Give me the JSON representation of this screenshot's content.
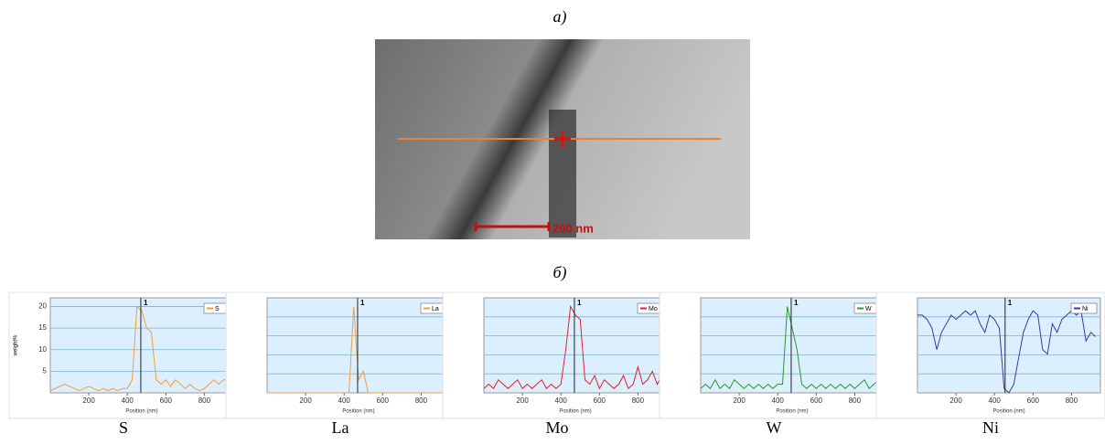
{
  "panel_labels": [
    "а)",
    "б)"
  ],
  "image": {
    "scale_label": "200 nm"
  },
  "chart_data": [
    {
      "type": "line",
      "title": "S",
      "ylabel": "weight%",
      "xlabel": "Position (nm)",
      "x": [
        0,
        25,
        50,
        75,
        100,
        125,
        150,
        175,
        200,
        225,
        250,
        275,
        300,
        325,
        350,
        375,
        400,
        425,
        450,
        475,
        500,
        525,
        550,
        575,
        600,
        625,
        650,
        675,
        700,
        725,
        750,
        775,
        800,
        825,
        850,
        875,
        900,
        925
      ],
      "series": [
        {
          "name": "S",
          "color": "#f0a030",
          "values": [
            0.5,
            1,
            1.5,
            2,
            1.5,
            1,
            0.5,
            1,
            1.5,
            1,
            0.5,
            1,
            0.5,
            1,
            0.5,
            1,
            1,
            3,
            20,
            19,
            15,
            14,
            3,
            2,
            3,
            1.5,
            3,
            2,
            1,
            2,
            1,
            0.5,
            1,
            2,
            3,
            2,
            3,
            3
          ]
        }
      ],
      "xlim": [
        0,
        950
      ],
      "ylim": [
        0,
        22
      ],
      "xticks": [
        200,
        400,
        600,
        800
      ],
      "yticks": [
        5,
        10,
        15,
        20
      ],
      "marker": {
        "x": 470,
        "label": "1"
      }
    },
    {
      "type": "line",
      "title": "La",
      "xlabel": "Position (nm)",
      "x": [
        0,
        25,
        50,
        75,
        100,
        125,
        150,
        175,
        200,
        225,
        250,
        275,
        300,
        325,
        350,
        375,
        400,
        425,
        450,
        475,
        500,
        525,
        550,
        575,
        600,
        625,
        650,
        675,
        700,
        725,
        750,
        775,
        800,
        825,
        850,
        875,
        900,
        925
      ],
      "series": [
        {
          "name": "La",
          "color": "#e8a040",
          "values": [
            0,
            0,
            0,
            0,
            0,
            0,
            0,
            0,
            0,
            0,
            0,
            0,
            0,
            0,
            0,
            0,
            0,
            0,
            20,
            3,
            5,
            0,
            0,
            0,
            0,
            0,
            0,
            0,
            0,
            0,
            0,
            0,
            0,
            0,
            0,
            0,
            0,
            0
          ]
        }
      ],
      "xlim": [
        0,
        950
      ],
      "ylim": [
        0,
        22
      ],
      "xticks": [
        200,
        400,
        600,
        800
      ],
      "marker": {
        "x": 470,
        "label": "1"
      }
    },
    {
      "type": "line",
      "title": "Mo",
      "xlabel": "Position (nm)",
      "x": [
        0,
        25,
        50,
        75,
        100,
        125,
        150,
        175,
        200,
        225,
        250,
        275,
        300,
        325,
        350,
        375,
        400,
        425,
        450,
        475,
        500,
        525,
        550,
        575,
        600,
        625,
        650,
        675,
        700,
        725,
        750,
        775,
        800,
        825,
        850,
        875,
        900,
        925
      ],
      "series": [
        {
          "name": "Mo",
          "color": "#e02030",
          "values": [
            1,
            2,
            1,
            3,
            2,
            1,
            2,
            3,
            1,
            2,
            1,
            2,
            3,
            1,
            2,
            1,
            2,
            10,
            20,
            18,
            17,
            3,
            2,
            4,
            1,
            3,
            2,
            1,
            2,
            4,
            1,
            2,
            6,
            2,
            3,
            5,
            2,
            4
          ]
        }
      ],
      "xlim": [
        0,
        950
      ],
      "ylim": [
        0,
        22
      ],
      "xticks": [
        200,
        400,
        600,
        800
      ],
      "marker": {
        "x": 470,
        "label": "1"
      }
    },
    {
      "type": "line",
      "title": "W",
      "xlabel": "Position (nm)",
      "x": [
        0,
        25,
        50,
        75,
        100,
        125,
        150,
        175,
        200,
        225,
        250,
        275,
        300,
        325,
        350,
        375,
        400,
        425,
        450,
        475,
        500,
        525,
        550,
        575,
        600,
        625,
        650,
        675,
        700,
        725,
        750,
        775,
        800,
        825,
        850,
        875,
        900,
        925
      ],
      "series": [
        {
          "name": "W",
          "color": "#2a9a2a",
          "values": [
            1,
            2,
            1,
            3,
            1,
            2,
            1,
            3,
            2,
            1,
            2,
            1,
            2,
            1,
            2,
            1,
            2,
            2,
            20,
            15,
            10,
            2,
            1,
            2,
            1,
            2,
            1,
            2,
            1,
            2,
            1,
            2,
            1,
            2,
            3,
            1,
            2,
            3
          ]
        }
      ],
      "xlim": [
        0,
        950
      ],
      "ylim": [
        0,
        22
      ],
      "xticks": [
        200,
        400,
        600,
        800
      ],
      "marker": {
        "x": 470,
        "label": "1"
      }
    },
    {
      "type": "line",
      "title": "Ni",
      "xlabel": "Position (nm)",
      "x": [
        0,
        25,
        50,
        75,
        100,
        125,
        150,
        175,
        200,
        225,
        250,
        275,
        300,
        325,
        350,
        375,
        400,
        425,
        450,
        475,
        500,
        525,
        550,
        575,
        600,
        625,
        650,
        675,
        700,
        725,
        750,
        775,
        800,
        825,
        850,
        875,
        900,
        925
      ],
      "series": [
        {
          "name": "Ni",
          "color": "#3a3aaa",
          "values": [
            18,
            18,
            17,
            15,
            10,
            14,
            16,
            18,
            17,
            18,
            19,
            18,
            19,
            16,
            14,
            18,
            17,
            15,
            1,
            0,
            2,
            8,
            14,
            17,
            19,
            18,
            10,
            9,
            16,
            14,
            17,
            18,
            19,
            18,
            19,
            12,
            14,
            13
          ]
        }
      ],
      "xlim": [
        0,
        950
      ],
      "ylim": [
        0,
        22
      ],
      "xticks": [
        200,
        400,
        600,
        800
      ],
      "marker": {
        "x": 455,
        "label": "1"
      }
    }
  ]
}
